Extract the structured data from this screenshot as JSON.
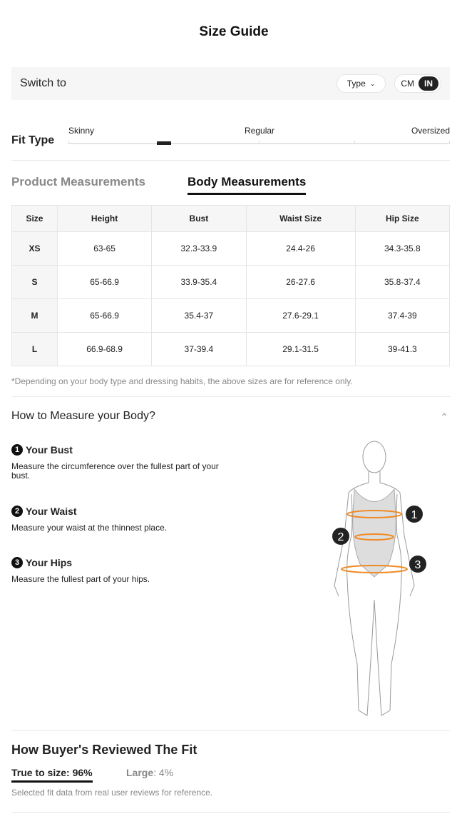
{
  "title": "Size Guide",
  "switch": {
    "label": "Switch to",
    "type_label": "Type",
    "unit_cm": "CM",
    "unit_in": "IN",
    "selected_unit": "IN"
  },
  "fit": {
    "label": "Fit Type",
    "scale": [
      "Skinny",
      "Regular",
      "Oversized"
    ],
    "value_fraction": 0.25
  },
  "tabs": [
    {
      "label": "Product Measurements",
      "active": false
    },
    {
      "label": "Body Measurements",
      "active": true
    }
  ],
  "table": {
    "headers": [
      "Size",
      "Height",
      "Bust",
      "Waist Size",
      "Hip Size"
    ],
    "rows": [
      [
        "XS",
        "63-65",
        "32.3-33.9",
        "24.4-26",
        "34.3-35.8"
      ],
      [
        "S",
        "65-66.9",
        "33.9-35.4",
        "26-27.6",
        "35.8-37.4"
      ],
      [
        "M",
        "65-66.9",
        "35.4-37",
        "27.6-29.1",
        "37.4-39"
      ],
      [
        "L",
        "66.9-68.9",
        "37-39.4",
        "29.1-31.5",
        "39-41.3"
      ]
    ]
  },
  "note": "*Depending on your body type and dressing habits, the above sizes are for reference only.",
  "how": {
    "title": "How to Measure your Body?",
    "steps": [
      {
        "num": "1",
        "title": "Your Bust",
        "text": "Measure the circumference over the fullest part of your bust."
      },
      {
        "num": "2",
        "title": "Your Waist",
        "text": "Measure your waist at the thinnest place."
      },
      {
        "num": "3",
        "title": "Your Hips",
        "text": "Measure the fullest part of your hips."
      }
    ]
  },
  "reviews": {
    "title": "How Buyer's Reviewed The Fit",
    "true_to_size": "True to size: 96%",
    "large_label": "Large",
    "large_value": ": 4%",
    "note": "Selected fit data from real user reviews for reference."
  },
  "colors": {
    "accent": "#222222",
    "measure_line": "#f08a24"
  }
}
